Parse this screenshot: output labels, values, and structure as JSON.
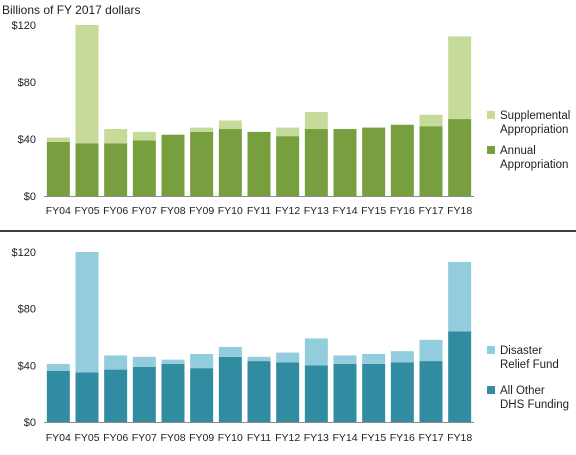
{
  "unit_label": "Billions of FY 2017 dollars",
  "colors": {
    "top_supplemental": "#c6da9a",
    "top_annual": "#789f3f",
    "bottom_drf": "#93cddd",
    "bottom_other": "#318ba1",
    "divider": "#000000",
    "axis": "#8c8c8c"
  },
  "chart_data": [
    {
      "type": "bar",
      "stacked": true,
      "title": "",
      "xlabel": "",
      "ylabel": "Billions of FY 2017 dollars",
      "ylim": [
        0,
        120
      ],
      "yticks": [
        0,
        40,
        80,
        120
      ],
      "ytick_labels": [
        "$0",
        "$40",
        "$80",
        "$120"
      ],
      "grid": false,
      "legend_position": "right",
      "categories": [
        "FY04",
        "FY05",
        "FY06",
        "FY07",
        "FY08",
        "FY09",
        "FY10",
        "FY11",
        "FY12",
        "FY13",
        "FY14",
        "FY15",
        "FY16",
        "FY17",
        "FY18"
      ],
      "series": [
        {
          "name": "Annual Appropriation",
          "color": "#789f3f",
          "values": [
            38,
            37,
            37,
            39,
            43,
            45,
            47,
            45,
            42,
            47,
            47,
            48,
            50,
            49,
            54
          ]
        },
        {
          "name": "Supplemental Appropriation",
          "color": "#c6da9a",
          "values": [
            3,
            83,
            10,
            6,
            0,
            3,
            6,
            0,
            6,
            12,
            0,
            0,
            0,
            8,
            58
          ]
        }
      ],
      "legend": [
        {
          "lines": [
            "Supplemental",
            "Appropriation"
          ],
          "color": "#c6da9a"
        },
        {
          "lines": [
            "Annual",
            "Appropriation"
          ],
          "color": "#789f3f"
        }
      ]
    },
    {
      "type": "bar",
      "stacked": true,
      "title": "",
      "xlabel": "",
      "ylabel": "",
      "ylim": [
        0,
        120
      ],
      "yticks": [
        0,
        40,
        80,
        120
      ],
      "ytick_labels": [
        "$0",
        "$40",
        "$80",
        "$120"
      ],
      "grid": false,
      "legend_position": "right",
      "categories": [
        "FY04",
        "FY05",
        "FY06",
        "FY07",
        "FY08",
        "FY09",
        "FY10",
        "FY11",
        "FY12",
        "FY13",
        "FY14",
        "FY15",
        "FY16",
        "FY17",
        "FY18"
      ],
      "series": [
        {
          "name": "All Other DHS Funding",
          "color": "#318ba1",
          "values": [
            36,
            35,
            37,
            39,
            41,
            38,
            46,
            43,
            42,
            40,
            41,
            41,
            42,
            43,
            64
          ]
        },
        {
          "name": "Disaster Relief Fund",
          "color": "#93cddd",
          "values": [
            5,
            85,
            10,
            7,
            3,
            10,
            7,
            3,
            7,
            19,
            6,
            7,
            8,
            15,
            49
          ]
        }
      ],
      "legend": [
        {
          "lines": [
            "Disaster",
            "Relief Fund"
          ],
          "color": "#93cddd"
        },
        {
          "lines": [
            "All Other",
            "DHS Funding"
          ],
          "color": "#318ba1"
        }
      ]
    }
  ]
}
